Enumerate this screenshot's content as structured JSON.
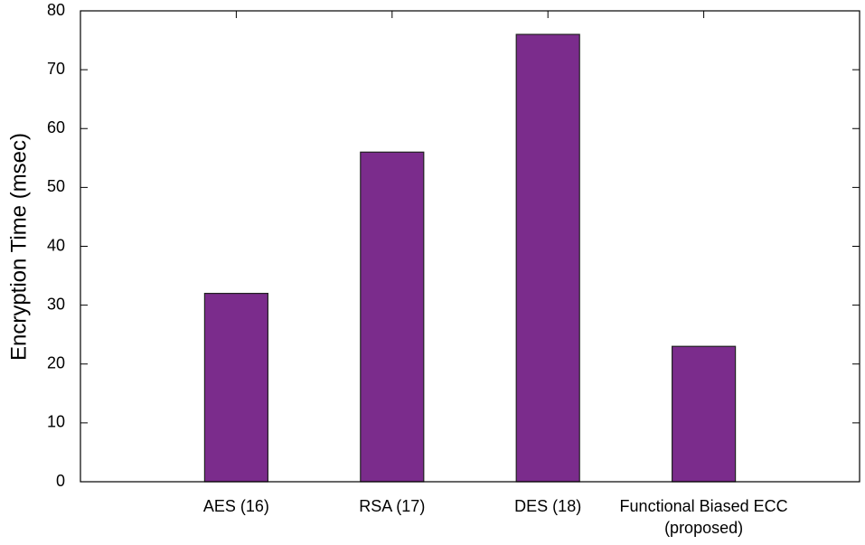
{
  "chart_data": {
    "type": "bar",
    "ylabel": "Encryption Time (msec)",
    "categories": [
      "AES (16)",
      "RSA (17)",
      "DES (18)",
      "Functional Biased ECC\n(proposed)"
    ],
    "values": [
      32,
      56,
      76,
      23
    ],
    "color": "#7b2c8c",
    "ylim": [
      0,
      80
    ],
    "yticks": [
      0,
      10,
      20,
      30,
      40,
      50,
      60,
      70,
      80
    ]
  }
}
